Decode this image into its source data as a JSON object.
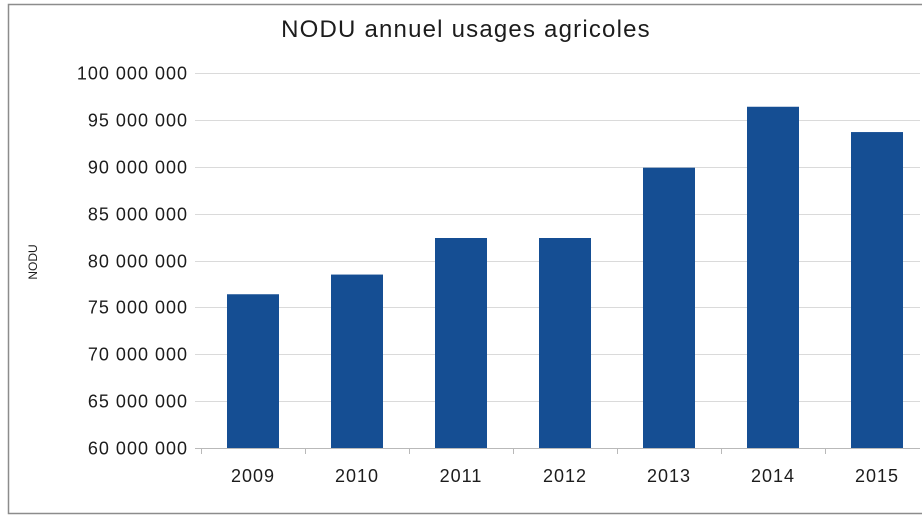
{
  "chart_data": {
    "type": "bar",
    "title": "NODU annuel usages agricoles",
    "ylabel": "NODU",
    "categories": [
      "2009",
      "2010",
      "2011",
      "2012",
      "2013",
      "2014",
      "2015"
    ],
    "values": [
      76400000,
      78500000,
      82400000,
      82400000,
      89900000,
      96400000,
      93700000
    ],
    "ylim": [
      60000000,
      100000000
    ],
    "y_ticks": [
      60000000,
      65000000,
      70000000,
      75000000,
      80000000,
      85000000,
      90000000,
      95000000,
      100000000
    ],
    "y_tick_labels": [
      "60 000 000",
      "65 000 000",
      "70 000 000",
      "75 000 000",
      "80 000 000",
      "85 000 000",
      "90 000 000",
      "95 000 000",
      "100 000 000"
    ],
    "grid": true,
    "legend": false,
    "bar_color": "#154e93",
    "grid_color": "#dadada"
  }
}
